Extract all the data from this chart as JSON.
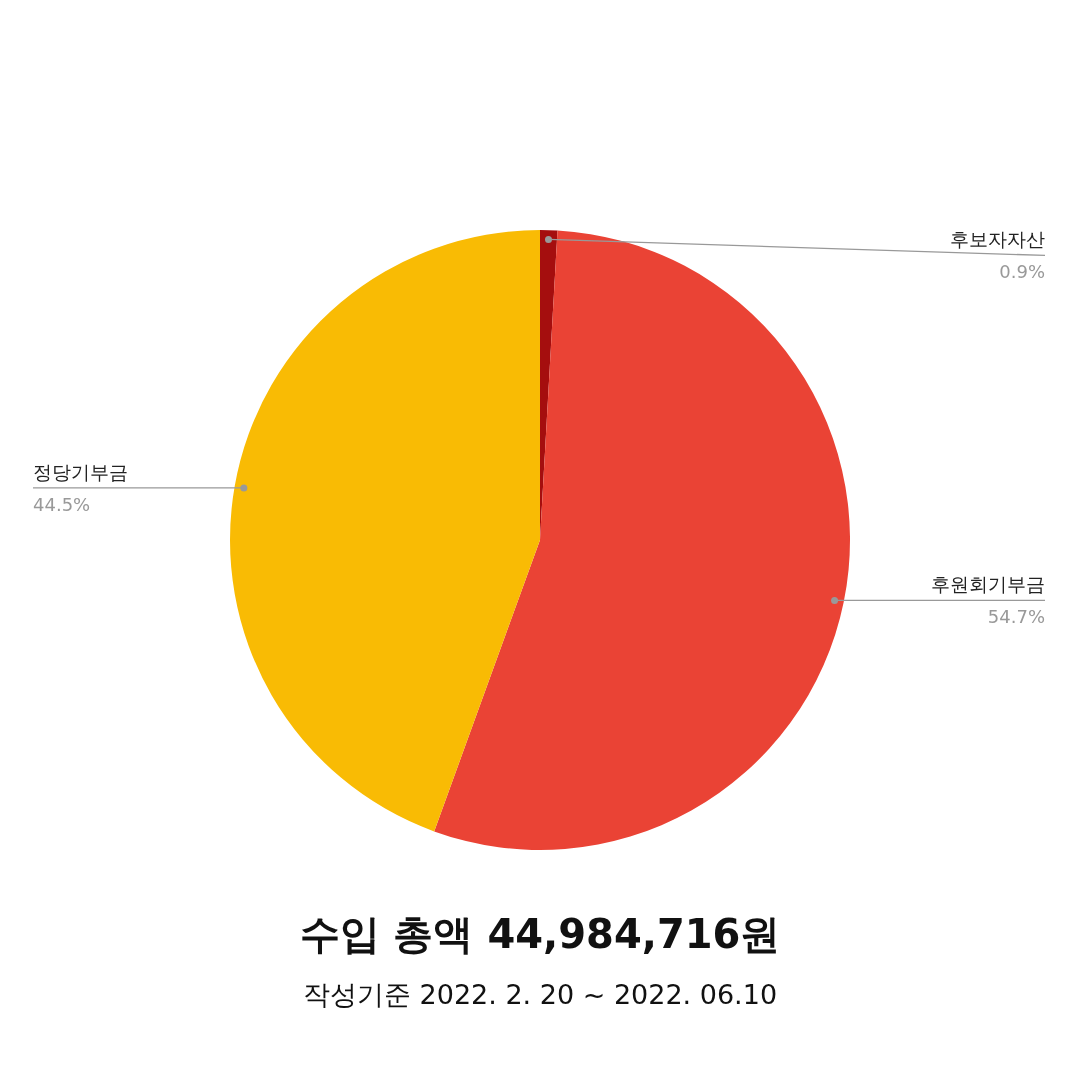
{
  "chart_data": {
    "type": "pie",
    "title": "수입 총액 44,984,716원",
    "subtitle": "작성기준 2022. 2. 20 ~ 2022. 06.10",
    "categories": [
      "후보자자산",
      "후원회기부금",
      "정당기부금"
    ],
    "values": [
      0.9,
      54.7,
      44.5
    ],
    "colors": [
      "#a50e0e",
      "#ea4335",
      "#f9bb04"
    ],
    "value_labels": [
      "0.9%",
      "54.7%",
      "44.5%"
    ]
  }
}
